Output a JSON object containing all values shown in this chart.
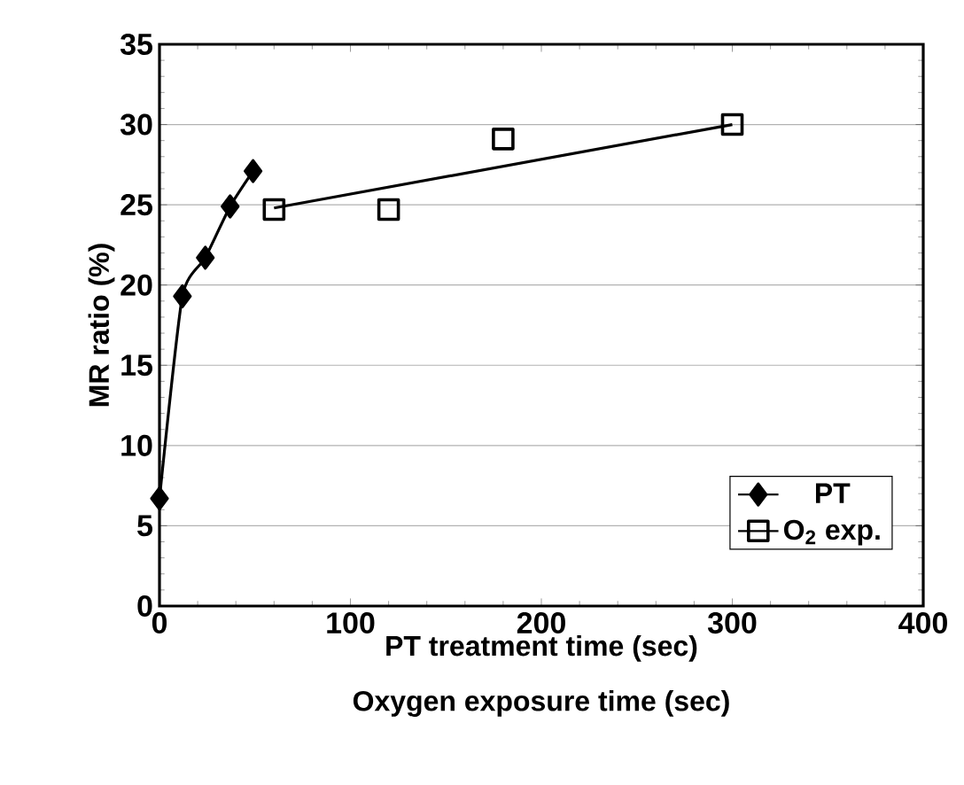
{
  "chart_data": {
    "type": "line",
    "xlabel": "PT treatment time  (sec)",
    "ylabel": "MR ratio (%)",
    "annotations": [
      "Oxygen exposure time (sec)"
    ],
    "xlim": [
      0,
      400
    ],
    "xticks": [
      0,
      100,
      200,
      300,
      400
    ],
    "ylim": [
      0,
      35
    ],
    "yticks": [
      0,
      5,
      10,
      15,
      20,
      25,
      30,
      35
    ],
    "grid": "y",
    "legend": "bottom right",
    "series": [
      {
        "name": "PT",
        "marker": "diamond",
        "color": "#000000",
        "x": [
          0,
          12,
          24,
          37,
          49
        ],
        "values": [
          6.7,
          19.3,
          21.7,
          24.9,
          27.1
        ]
      },
      {
        "name": "O$_{2}$ exp.",
        "type": "scatter",
        "marker": "square",
        "color": "#000000",
        "x": [
          60,
          120,
          180,
          300
        ],
        "values": [
          24.7,
          24.7,
          29.1,
          30.0
        ]
      },
      {
        "type": "line",
        "marker": "none",
        "color": "#000000",
        "x": [
          60,
          300
        ],
        "values": [
          24.8,
          30.0
        ]
      }
    ]
  }
}
